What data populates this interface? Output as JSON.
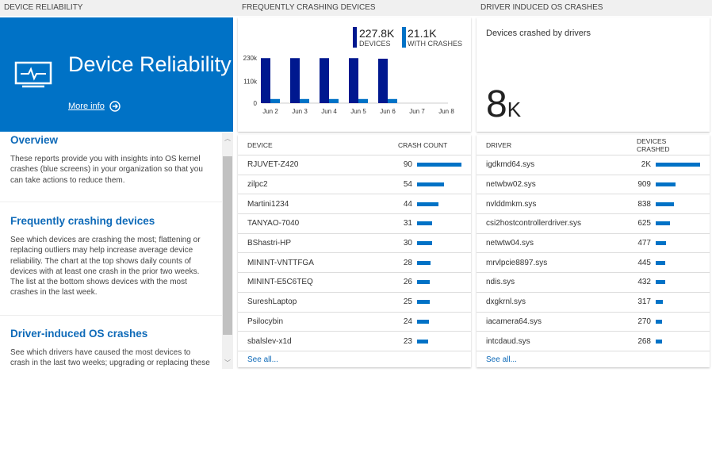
{
  "headers": [
    "Device reliability",
    "Frequently crashing devices",
    "Driver induced OS crashes"
  ],
  "hero": {
    "title": "Device Reliability",
    "more_info": "More info",
    "icon": "monitor-pulse-icon",
    "color": "#0072c6"
  },
  "sections": [
    {
      "title": "Overview",
      "text": "These reports provide you with insights into OS kernel crashes (blue screens) in your organization so that you can take actions to reduce them."
    },
    {
      "title": "Frequently crashing devices",
      "text": "See which devices are crashing the most; flattening or replacing outliers may help increase average device reliability. The chart at the top shows daily counts of devices with at least one crash in the prior two weeks. The list at the bottom shows devices with the most crashes in the last week."
    },
    {
      "title": "Driver-induced OS crashes",
      "text": "See which drivers have caused the most devices to crash in the last two weeks; upgrading or replacing these drivers"
    }
  ],
  "summary": {
    "devices_value": "227.8K",
    "devices_label": "DEVICES",
    "crashes_value": "21.1K",
    "crashes_label": "WITH CRASHES"
  },
  "chart_data": {
    "type": "bar",
    "categories": [
      "Jun 2",
      "Jun 3",
      "Jun 4",
      "Jun 5",
      "Jun 6",
      "Jun 7",
      "Jun 8"
    ],
    "series": [
      {
        "name": "DEVICES",
        "values": [
          229000,
          229000,
          229000,
          229000,
          226000,
          null,
          null
        ],
        "color": "#00188f"
      },
      {
        "name": "WITH CRASHES",
        "values": [
          21000,
          21000,
          21000,
          21000,
          21000,
          null,
          null
        ],
        "color": "#0072c6"
      }
    ],
    "yticks": [
      "230k",
      "110k",
      "0"
    ],
    "ylim": [
      0,
      230000
    ]
  },
  "devices_table": {
    "col1": "DEVICE",
    "col2": "CRASH COUNT",
    "see_all": "See all...",
    "rows": [
      [
        "RJUVET-Z420",
        90
      ],
      [
        "zilpc2",
        54
      ],
      [
        "Martini1234",
        44
      ],
      [
        "TANYAO-7040",
        31
      ],
      [
        "BShastri-HP",
        30
      ],
      [
        "MININT-VNTTFGA",
        28
      ],
      [
        "MININT-E5C6TEQ",
        26
      ],
      [
        "SureshLaptop",
        25
      ],
      [
        "Psilocybin",
        24
      ],
      [
        "sbalslev-x1d",
        23
      ]
    ]
  },
  "drivers_card": {
    "label": "Devices crashed by drivers",
    "value": "8",
    "unit": "K"
  },
  "drivers_table": {
    "col1": "DRIVER",
    "col2": "DEVICES CRASHED",
    "see_all": "See all...",
    "rows": [
      [
        "igdkmd64.sys",
        "2K",
        2000
      ],
      [
        "netwbw02.sys",
        "909",
        909
      ],
      [
        "nvlddmkm.sys",
        "838",
        838
      ],
      [
        "csi2hostcontrollerdriver.sys",
        "625",
        625
      ],
      [
        "netwtw04.sys",
        "477",
        477
      ],
      [
        "mrvlpcie8897.sys",
        "445",
        445
      ],
      [
        "ndis.sys",
        "432",
        432
      ],
      [
        "dxgkrnl.sys",
        "317",
        317
      ],
      [
        "iacamera64.sys",
        "270",
        270
      ],
      [
        "intcdaud.sys",
        "268",
        268
      ]
    ]
  }
}
